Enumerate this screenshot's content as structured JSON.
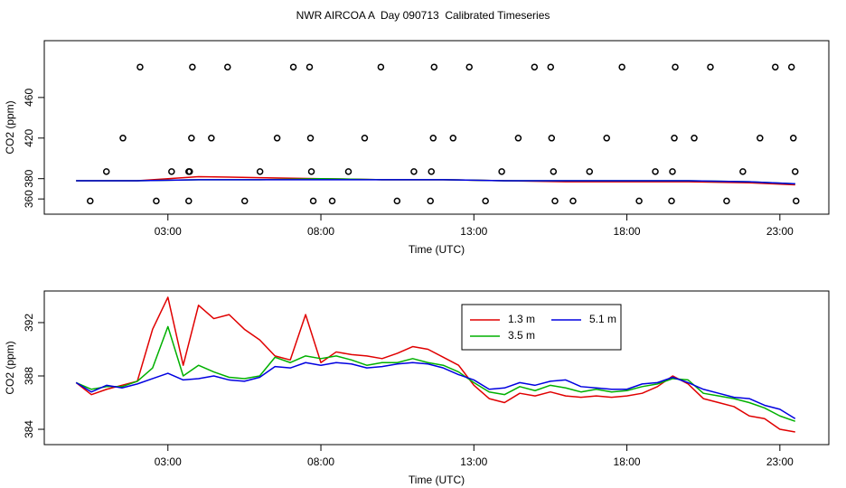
{
  "title": "NWR AIRCOA A  Day 090713  Calibrated Timeseries",
  "chart_data": [
    {
      "type": "line",
      "xlabel": "Time (UTC)",
      "ylabel": "CO2 (ppm)",
      "xlim": [
        -1.04,
        24.6
      ],
      "ylim": [
        345,
        516
      ],
      "xticks": [
        {
          "value": 3,
          "label": "03:00"
        },
        {
          "value": 8,
          "label": "08:00"
        },
        {
          "value": 13,
          "label": "13:00"
        },
        {
          "value": 18,
          "label": "18:00"
        },
        {
          "value": 23,
          "label": "23:00"
        }
      ],
      "yticks": [
        360,
        380,
        420,
        460
      ],
      "x": [
        0,
        2,
        4,
        6,
        8,
        10,
        12,
        14,
        16,
        18,
        20,
        22,
        23.5
      ],
      "series": [
        {
          "color": "#e00000",
          "values": [
            378,
            378,
            382,
            381,
            380,
            379,
            379,
            378,
            377,
            377,
            377,
            376,
            374
          ]
        },
        {
          "color": "#00b000",
          "values": [
            378,
            378,
            379,
            379,
            380,
            379,
            379,
            378,
            378,
            378,
            378,
            377,
            375
          ]
        },
        {
          "color": "#0000e0",
          "values": [
            378,
            378,
            379,
            379,
            379,
            379,
            379,
            378,
            378,
            378,
            378,
            377,
            375
          ]
        }
      ],
      "points": {
        "color": "#000000",
        "x": [
          2.09,
          3.8,
          4.95,
          7.1,
          7.63,
          9.96,
          11.7,
          12.85,
          14.98,
          15.51,
          17.84,
          19.58,
          20.73,
          22.85,
          23.38,
          1.53,
          3.77,
          4.42,
          6.57,
          7.66,
          9.43,
          11.67,
          12.32,
          14.45,
          15.54,
          17.34,
          19.55,
          20.2,
          22.35,
          23.44,
          0.99,
          3.12,
          3.68,
          3.71,
          6.01,
          7.69,
          8.9,
          11.04,
          11.61,
          13.91,
          15.6,
          16.78,
          18.93,
          19.49,
          21.79,
          23.5,
          0.46,
          2.62,
          3.68,
          5.51,
          7.75,
          8.37,
          10.49,
          11.58,
          13.38,
          15.65,
          16.24,
          18.4,
          19.46,
          21.26,
          23.53
        ],
        "values": [
          490,
          490,
          490,
          490,
          490,
          490,
          490,
          490,
          490,
          490,
          490,
          490,
          490,
          490,
          490,
          420,
          420,
          420,
          420,
          420,
          420,
          420,
          420,
          420,
          420,
          420,
          420,
          420,
          420,
          420,
          387,
          387,
          387,
          387,
          387,
          387,
          387,
          387,
          387,
          387,
          387,
          387,
          387,
          387,
          387,
          387,
          358,
          358,
          358,
          358,
          358,
          358,
          358,
          358,
          358,
          358,
          358,
          358,
          358,
          358,
          358
        ]
      }
    },
    {
      "type": "line",
      "xlabel": "Time (UTC)",
      "ylabel": "CO2 (ppm)",
      "xlim": [
        -1.04,
        24.6
      ],
      "ylim": [
        382.85,
        394.37
      ],
      "xticks": [
        {
          "value": 3,
          "label": "03:00"
        },
        {
          "value": 8,
          "label": "08:00"
        },
        {
          "value": 13,
          "label": "13:00"
        },
        {
          "value": 18,
          "label": "18:00"
        },
        {
          "value": 23,
          "label": "23:00"
        }
      ],
      "yticks": [
        384,
        388,
        392
      ],
      "legend": "top",
      "x": [
        0,
        0.5,
        1,
        1.5,
        2,
        2.5,
        3,
        3.5,
        4,
        4.5,
        5,
        5.5,
        6,
        6.5,
        7,
        7.5,
        8,
        8.5,
        9,
        9.5,
        10,
        10.5,
        11,
        11.5,
        12,
        12.5,
        13,
        13.5,
        14,
        14.5,
        15,
        15.5,
        16,
        16.5,
        17,
        17.5,
        18,
        18.5,
        19,
        19.5,
        20,
        20.5,
        21,
        21.5,
        22,
        22.5,
        23,
        23.5
      ],
      "series": [
        {
          "name": "1.3 m",
          "color": "#e00000",
          "values": [
            387.5,
            386.6,
            387.0,
            387.3,
            387.6,
            391.5,
            393.9,
            388.8,
            393.3,
            392.3,
            392.6,
            391.5,
            390.7,
            389.5,
            389.2,
            392.6,
            389.0,
            389.8,
            389.6,
            389.5,
            389.3,
            389.7,
            390.2,
            390.0,
            389.4,
            388.8,
            387.3,
            386.3,
            386.0,
            386.7,
            386.5,
            386.8,
            386.5,
            386.4,
            386.5,
            386.4,
            386.5,
            386.7,
            387.2,
            388.0,
            387.4,
            386.3,
            386.0,
            385.7,
            385.0,
            384.8,
            384.0,
            383.8
          ]
        },
        {
          "name": "3.5 m",
          "color": "#00b000",
          "values": [
            387.5,
            387.0,
            387.2,
            387.2,
            387.6,
            388.6,
            391.7,
            388.0,
            388.8,
            388.3,
            387.9,
            387.8,
            388.0,
            389.4,
            389.0,
            389.5,
            389.3,
            389.5,
            389.2,
            388.8,
            389.0,
            389.0,
            389.3,
            389.0,
            388.8,
            388.3,
            387.5,
            386.8,
            386.6,
            387.2,
            386.9,
            387.3,
            387.1,
            386.8,
            387.0,
            386.8,
            386.9,
            387.2,
            387.4,
            387.8,
            387.7,
            386.7,
            386.5,
            386.3,
            386.0,
            385.6,
            385.0,
            384.6
          ]
        },
        {
          "name": "5.1 m",
          "color": "#0000e0",
          "values": [
            387.5,
            386.8,
            387.3,
            387.1,
            387.4,
            387.8,
            388.2,
            387.7,
            387.8,
            388.0,
            387.7,
            387.6,
            387.9,
            388.7,
            388.6,
            389.0,
            388.8,
            389.0,
            388.9,
            388.6,
            388.7,
            388.9,
            389.0,
            388.9,
            388.6,
            388.1,
            387.7,
            387.0,
            387.1,
            387.5,
            387.3,
            387.6,
            387.7,
            387.2,
            387.1,
            387.0,
            387.0,
            387.4,
            387.5,
            387.9,
            387.5,
            387.0,
            386.7,
            386.4,
            386.3,
            385.8,
            385.5,
            384.8
          ]
        }
      ]
    }
  ]
}
